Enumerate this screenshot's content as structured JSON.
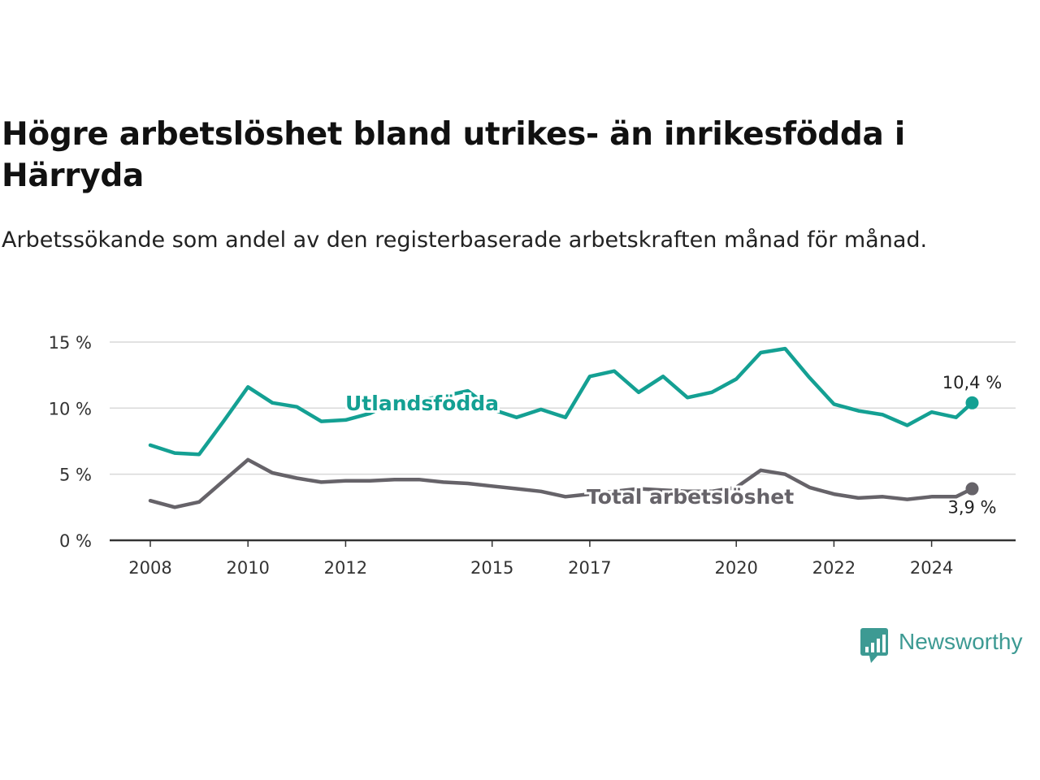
{
  "header": {
    "title": "Högre arbetslöshet bland utrikes- än inrikesfödda i Härryda",
    "subtitle": "Arbetssökande som andel av den registerbaserade arbetskraften månad för månad."
  },
  "logo": {
    "text": "Newsworthy",
    "color": "#3d9a93"
  },
  "chart_data": {
    "type": "line",
    "ylim": [
      0,
      15
    ],
    "y_ticks": [
      0,
      5,
      10,
      15
    ],
    "y_tick_labels": [
      "0 %",
      "5 %",
      "10 %",
      "15 %"
    ],
    "x_ticks": [
      2008,
      2010,
      2012,
      2015,
      2017,
      2020,
      2022,
      2024
    ],
    "x_tick_labels": [
      "2008",
      "2010",
      "2012",
      "2015",
      "2017",
      "2020",
      "2022",
      "2024"
    ],
    "grid": true,
    "series": [
      {
        "name": "Utlandsfödda",
        "color": "#14a093",
        "end_label": "10,4 %",
        "x": [
          2008.0,
          2008.5,
          2009.0,
          2009.5,
          2010.0,
          2010.5,
          2011.0,
          2011.5,
          2012.0,
          2012.5,
          2013.0,
          2013.5,
          2014.0,
          2014.5,
          2015.0,
          2015.5,
          2016.0,
          2016.5,
          2017.0,
          2017.5,
          2018.0,
          2018.5,
          2019.0,
          2019.5,
          2020.0,
          2020.5,
          2021.0,
          2021.5,
          2022.0,
          2022.5,
          2023.0,
          2023.5,
          2024.0,
          2024.5,
          2024.83
        ],
        "values": [
          7.2,
          6.6,
          6.5,
          9.0,
          11.6,
          10.4,
          10.1,
          9.0,
          9.1,
          9.6,
          10.5,
          10.6,
          10.9,
          11.3,
          9.9,
          9.3,
          9.9,
          9.3,
          12.4,
          12.8,
          11.2,
          12.4,
          10.8,
          11.2,
          12.2,
          14.2,
          14.5,
          12.3,
          10.3,
          9.8,
          9.5,
          8.7,
          9.7,
          9.3,
          10.4
        ]
      },
      {
        "name": "Total arbetslöshet",
        "color": "#666369",
        "end_label": "3,9 %",
        "x": [
          2008.0,
          2008.5,
          2009.0,
          2009.5,
          2010.0,
          2010.5,
          2011.0,
          2011.5,
          2012.0,
          2012.5,
          2013.0,
          2013.5,
          2014.0,
          2014.5,
          2015.0,
          2015.5,
          2016.0,
          2016.5,
          2017.0,
          2017.5,
          2018.0,
          2018.5,
          2019.0,
          2019.5,
          2020.0,
          2020.5,
          2021.0,
          2021.5,
          2022.0,
          2022.5,
          2023.0,
          2023.5,
          2024.0,
          2024.5,
          2024.83
        ],
        "values": [
          3.0,
          2.5,
          2.9,
          4.5,
          6.1,
          5.1,
          4.7,
          4.4,
          4.5,
          4.5,
          4.6,
          4.6,
          4.4,
          4.3,
          4.1,
          3.9,
          3.7,
          3.3,
          3.5,
          3.7,
          3.9,
          3.8,
          3.7,
          3.7,
          4.0,
          5.3,
          5.0,
          4.0,
          3.5,
          3.2,
          3.3,
          3.1,
          3.3,
          3.3,
          3.9
        ]
      }
    ]
  }
}
